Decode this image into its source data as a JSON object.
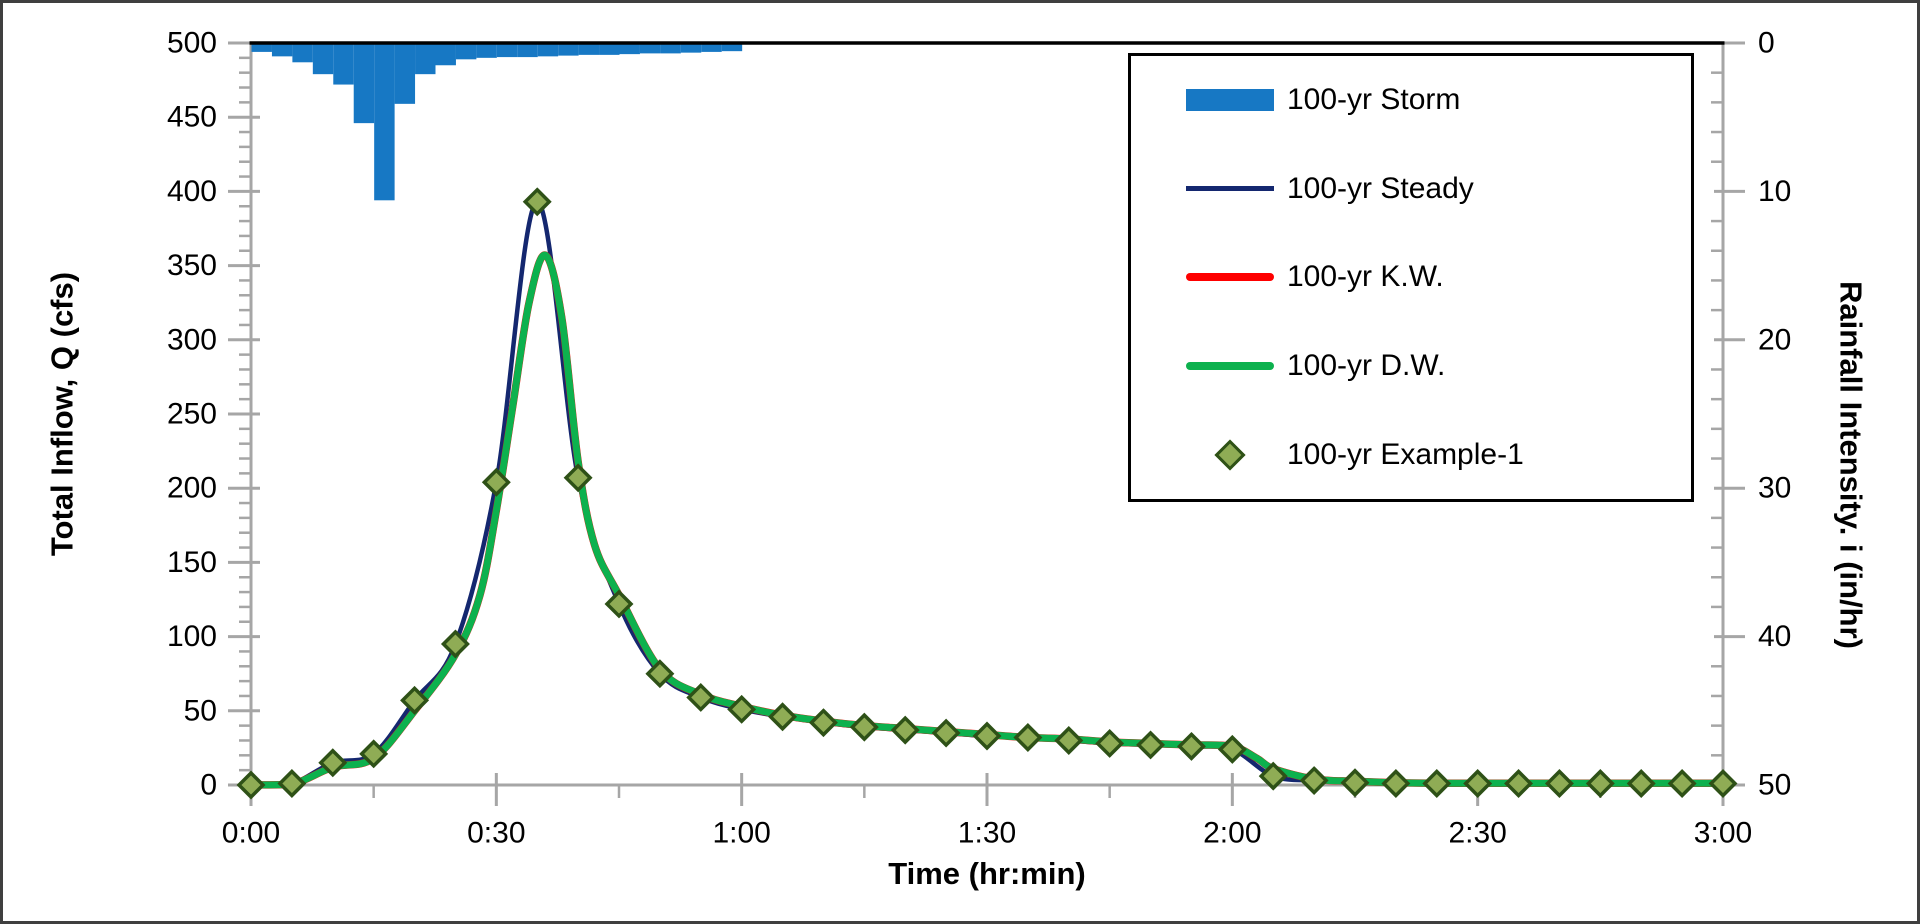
{
  "figure": {
    "background": "#FFFFFF",
    "frame_color": "#3F3F3F",
    "plot_top_line_color": "#000000",
    "axis_color": "#A6A6A6",
    "text_color": "#000000"
  },
  "chart_data": {
    "type": "combo-bar-line-scatter",
    "title": "",
    "x_axis": {
      "title": "Time (hr:min)",
      "range_min": [
        0,
        180
      ],
      "major_ticks": [
        {
          "t": 0,
          "label": "0:00"
        },
        {
          "t": 30,
          "label": "0:30"
        },
        {
          "t": 60,
          "label": "1:00"
        },
        {
          "t": 90,
          "label": "1:30"
        },
        {
          "t": 120,
          "label": "2:00"
        },
        {
          "t": 150,
          "label": "2:30"
        },
        {
          "t": 180,
          "label": "3:00"
        }
      ],
      "minor_step_min": 15
    },
    "y_left": {
      "title": "Total Inflow, Q (cfs)",
      "min": 0,
      "max": 500,
      "ticks": [
        0,
        50,
        100,
        150,
        200,
        250,
        300,
        350,
        400,
        450,
        500
      ],
      "minor_step": 10
    },
    "y_right": {
      "title": "Rainfall Intensity. i (in/hr)",
      "min": 0,
      "max": 50,
      "inverted": true,
      "ticks": [
        0,
        10,
        20,
        30,
        40,
        50
      ],
      "minor_step": 2
    },
    "legend": {
      "position": "top-right",
      "border_color": "#000000"
    },
    "series": [
      {
        "name": "100-yr Storm",
        "type": "bar",
        "axis": "right",
        "color": "#1778C4",
        "start_min": 0,
        "interval_min": 2.5,
        "intensities_in_hr": [
          0.6,
          0.9,
          1.3,
          2.1,
          2.8,
          5.4,
          10.6,
          4.1,
          2.1,
          1.5,
          1.1,
          1.0,
          0.95,
          0.95,
          0.9,
          0.85,
          0.8,
          0.8,
          0.75,
          0.7,
          0.7,
          0.65,
          0.6,
          0.55
        ]
      },
      {
        "name": "100-yr Steady",
        "type": "line",
        "axis": "left",
        "color": "#14276F",
        "width": 4.5,
        "points": [
          [
            0,
            0
          ],
          [
            5,
            1
          ],
          [
            10,
            15
          ],
          [
            15,
            21
          ],
          [
            20,
            57
          ],
          [
            25,
            95
          ],
          [
            30,
            204
          ],
          [
            35,
            393
          ],
          [
            40,
            207
          ],
          [
            45,
            122
          ],
          [
            50,
            75
          ],
          [
            55,
            59
          ],
          [
            60,
            51
          ],
          [
            65,
            46
          ],
          [
            70,
            42
          ],
          [
            75,
            39
          ],
          [
            80,
            37
          ],
          [
            85,
            35
          ],
          [
            90,
            33
          ],
          [
            95,
            32
          ],
          [
            100,
            30
          ],
          [
            105,
            28
          ],
          [
            110,
            27
          ],
          [
            115,
            26
          ],
          [
            120,
            24
          ],
          [
            125,
            6
          ],
          [
            130,
            3
          ],
          [
            135,
            1.5
          ],
          [
            140,
            1
          ],
          [
            145,
            1
          ],
          [
            150,
            1
          ],
          [
            155,
            1
          ],
          [
            160,
            1
          ],
          [
            165,
            1
          ],
          [
            170,
            1
          ],
          [
            175,
            1
          ],
          [
            180,
            1
          ]
        ]
      },
      {
        "name": "100-yr K.W.",
        "type": "line",
        "axis": "left",
        "color": "#FE0000",
        "width": 7.5,
        "points": [
          [
            0,
            0
          ],
          [
            5,
            0.5
          ],
          [
            10,
            12
          ],
          [
            15,
            18
          ],
          [
            20,
            50
          ],
          [
            25,
            88
          ],
          [
            28,
            128
          ],
          [
            30,
            185
          ],
          [
            32,
            255
          ],
          [
            34,
            325
          ],
          [
            36,
            357
          ],
          [
            38,
            315
          ],
          [
            40,
            218
          ],
          [
            42,
            162
          ],
          [
            45,
            128
          ],
          [
            50,
            78
          ],
          [
            55,
            61
          ],
          [
            60,
            53
          ],
          [
            65,
            47
          ],
          [
            70,
            43
          ],
          [
            75,
            40
          ],
          [
            80,
            38
          ],
          [
            85,
            36
          ],
          [
            90,
            34
          ],
          [
            95,
            32
          ],
          [
            100,
            31
          ],
          [
            105,
            29
          ],
          [
            110,
            28
          ],
          [
            115,
            27
          ],
          [
            120,
            26
          ],
          [
            123,
            18
          ],
          [
            125,
            11
          ],
          [
            130,
            4
          ],
          [
            135,
            2.5
          ],
          [
            140,
            1.5
          ],
          [
            145,
            1.2
          ],
          [
            150,
            1.2
          ],
          [
            155,
            1.2
          ],
          [
            160,
            1.2
          ],
          [
            165,
            1.2
          ],
          [
            170,
            1.2
          ],
          [
            175,
            1.2
          ],
          [
            180,
            1.2
          ]
        ]
      },
      {
        "name": "100-yr D.W.",
        "type": "line",
        "axis": "left",
        "color": "#0DB14E",
        "width": 7,
        "points": [
          [
            0,
            0
          ],
          [
            5,
            0.5
          ],
          [
            10,
            12
          ],
          [
            15,
            18
          ],
          [
            20,
            50
          ],
          [
            25,
            88
          ],
          [
            28,
            128
          ],
          [
            30,
            185
          ],
          [
            32,
            255
          ],
          [
            34,
            325
          ],
          [
            36,
            357
          ],
          [
            38,
            315
          ],
          [
            40,
            218
          ],
          [
            42,
            162
          ],
          [
            45,
            128
          ],
          [
            50,
            78
          ],
          [
            55,
            61
          ],
          [
            60,
            53
          ],
          [
            65,
            47
          ],
          [
            70,
            43
          ],
          [
            75,
            40
          ],
          [
            80,
            38
          ],
          [
            85,
            36
          ],
          [
            90,
            34
          ],
          [
            95,
            32
          ],
          [
            100,
            31
          ],
          [
            105,
            29
          ],
          [
            110,
            28
          ],
          [
            115,
            27
          ],
          [
            120,
            26
          ],
          [
            123,
            18
          ],
          [
            125,
            11
          ],
          [
            130,
            4
          ],
          [
            135,
            2.5
          ],
          [
            140,
            1.5
          ],
          [
            145,
            1.2
          ],
          [
            150,
            1.2
          ],
          [
            155,
            1.2
          ],
          [
            160,
            1.2
          ],
          [
            165,
            1.2
          ],
          [
            170,
            1.2
          ],
          [
            175,
            1.2
          ],
          [
            180,
            1.2
          ]
        ]
      },
      {
        "name": "100-yr Example-1",
        "type": "scatter",
        "axis": "left",
        "marker": "diamond",
        "fill": "#8FAC55",
        "stroke": "#2E5117",
        "points": [
          [
            0,
            0
          ],
          [
            5,
            1
          ],
          [
            10,
            15
          ],
          [
            15,
            21
          ],
          [
            20,
            57
          ],
          [
            25,
            95
          ],
          [
            30,
            204
          ],
          [
            35,
            393
          ],
          [
            40,
            207
          ],
          [
            45,
            122
          ],
          [
            50,
            75
          ],
          [
            55,
            59
          ],
          [
            60,
            51
          ],
          [
            65,
            46
          ],
          [
            70,
            42
          ],
          [
            75,
            39
          ],
          [
            80,
            37
          ],
          [
            85,
            35
          ],
          [
            90,
            33
          ],
          [
            95,
            32
          ],
          [
            100,
            30
          ],
          [
            105,
            28
          ],
          [
            110,
            27
          ],
          [
            115,
            26
          ],
          [
            120,
            24
          ],
          [
            125,
            6
          ],
          [
            130,
            3
          ],
          [
            135,
            1.5
          ],
          [
            140,
            1
          ],
          [
            145,
            1
          ],
          [
            150,
            1
          ],
          [
            155,
            1
          ],
          [
            160,
            1
          ],
          [
            165,
            1
          ],
          [
            170,
            1
          ],
          [
            175,
            1
          ],
          [
            180,
            1
          ]
        ]
      }
    ]
  }
}
